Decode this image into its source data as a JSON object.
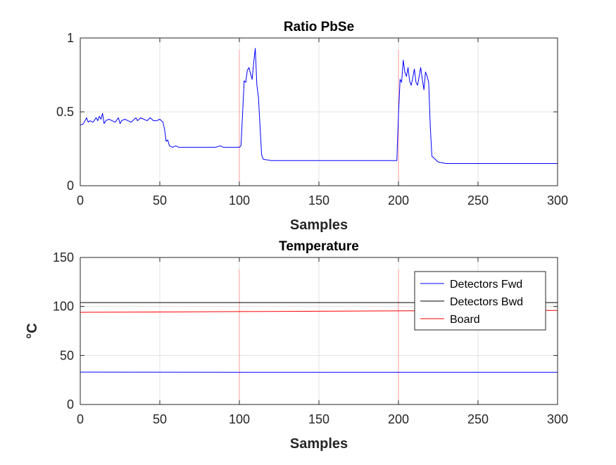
{
  "chart_data": [
    {
      "type": "line",
      "title": "Ratio PbSe",
      "xlabel": "Samples",
      "ylabel": "",
      "xlim": [
        0,
        300
      ],
      "ylim": [
        0,
        1
      ],
      "xticks": [
        0,
        50,
        100,
        150,
        200,
        250,
        300
      ],
      "yticks": [
        0,
        0.5,
        1
      ],
      "grid": true,
      "series": [
        {
          "color": "#0000ff",
          "x": [
            0,
            2,
            4,
            5,
            6,
            8,
            10,
            11,
            12,
            13,
            14,
            15,
            16,
            18,
            20,
            22,
            24,
            25,
            26,
            28,
            30,
            32,
            34,
            35,
            36,
            38,
            40,
            42,
            44,
            46,
            48,
            50,
            51,
            52,
            53,
            54,
            55,
            56,
            58,
            60,
            62,
            65,
            70,
            75,
            80,
            85,
            88,
            90,
            92,
            95,
            98,
            100,
            101,
            102,
            103,
            104,
            105,
            106,
            107,
            108,
            109,
            110,
            111,
            112,
            113,
            114,
            115,
            120,
            130,
            140,
            150,
            160,
            170,
            180,
            190,
            195,
            199,
            200,
            201,
            202,
            203,
            204,
            205,
            206,
            207,
            208,
            209,
            210,
            211,
            212,
            213,
            214,
            215,
            216,
            217,
            218,
            219,
            220,
            221,
            225,
            230,
            240,
            250,
            260,
            270,
            280,
            290,
            300
          ],
          "y": [
            0.41,
            0.42,
            0.46,
            0.43,
            0.44,
            0.43,
            0.46,
            0.44,
            0.47,
            0.45,
            0.49,
            0.42,
            0.44,
            0.45,
            0.44,
            0.43,
            0.46,
            0.42,
            0.44,
            0.45,
            0.44,
            0.43,
            0.45,
            0.46,
            0.44,
            0.46,
            0.45,
            0.44,
            0.46,
            0.44,
            0.44,
            0.45,
            0.44,
            0.43,
            0.38,
            0.3,
            0.31,
            0.27,
            0.26,
            0.27,
            0.26,
            0.26,
            0.26,
            0.26,
            0.26,
            0.26,
            0.27,
            0.26,
            0.26,
            0.26,
            0.26,
            0.26,
            0.27,
            0.48,
            0.71,
            0.7,
            0.78,
            0.8,
            0.76,
            0.72,
            0.83,
            0.93,
            0.68,
            0.6,
            0.4,
            0.21,
            0.18,
            0.17,
            0.17,
            0.17,
            0.17,
            0.17,
            0.17,
            0.17,
            0.17,
            0.17,
            0.17,
            0.48,
            0.72,
            0.7,
            0.85,
            0.77,
            0.74,
            0.8,
            0.71,
            0.68,
            0.73,
            0.79,
            0.7,
            0.68,
            0.74,
            0.8,
            0.72,
            0.65,
            0.77,
            0.74,
            0.7,
            0.4,
            0.2,
            0.16,
            0.15,
            0.15,
            0.15,
            0.15,
            0.15,
            0.15,
            0.15,
            0.15
          ]
        }
      ],
      "markers": {
        "x": [
          100,
          200,
          300
        ],
        "color": "#ff9999"
      }
    },
    {
      "type": "line",
      "title": "Temperature",
      "xlabel": "Samples",
      "ylabel": "°C",
      "xlim": [
        0,
        300
      ],
      "ylim": [
        0,
        150
      ],
      "xticks": [
        0,
        50,
        100,
        150,
        200,
        250,
        300
      ],
      "yticks": [
        0,
        50,
        100,
        150
      ],
      "grid": true,
      "legend_position": "top-right",
      "series": [
        {
          "name": "Detectors Fwd",
          "color": "#0000ff",
          "x": [
            0,
            100,
            200,
            300
          ],
          "y": [
            33,
            32.8,
            32.8,
            32.8
          ]
        },
        {
          "name": "Detectors Bwd",
          "color": "#000000",
          "x": [
            0,
            100,
            200,
            300
          ],
          "y": [
            104,
            104,
            104,
            104
          ]
        },
        {
          "name": "Board",
          "color": "#ff0000",
          "x": [
            0,
            100,
            200,
            300
          ],
          "y": [
            94,
            94.8,
            95.5,
            96
          ]
        }
      ],
      "markers": {
        "x": [
          100,
          200,
          300
        ],
        "color": "#ff9999"
      }
    }
  ]
}
